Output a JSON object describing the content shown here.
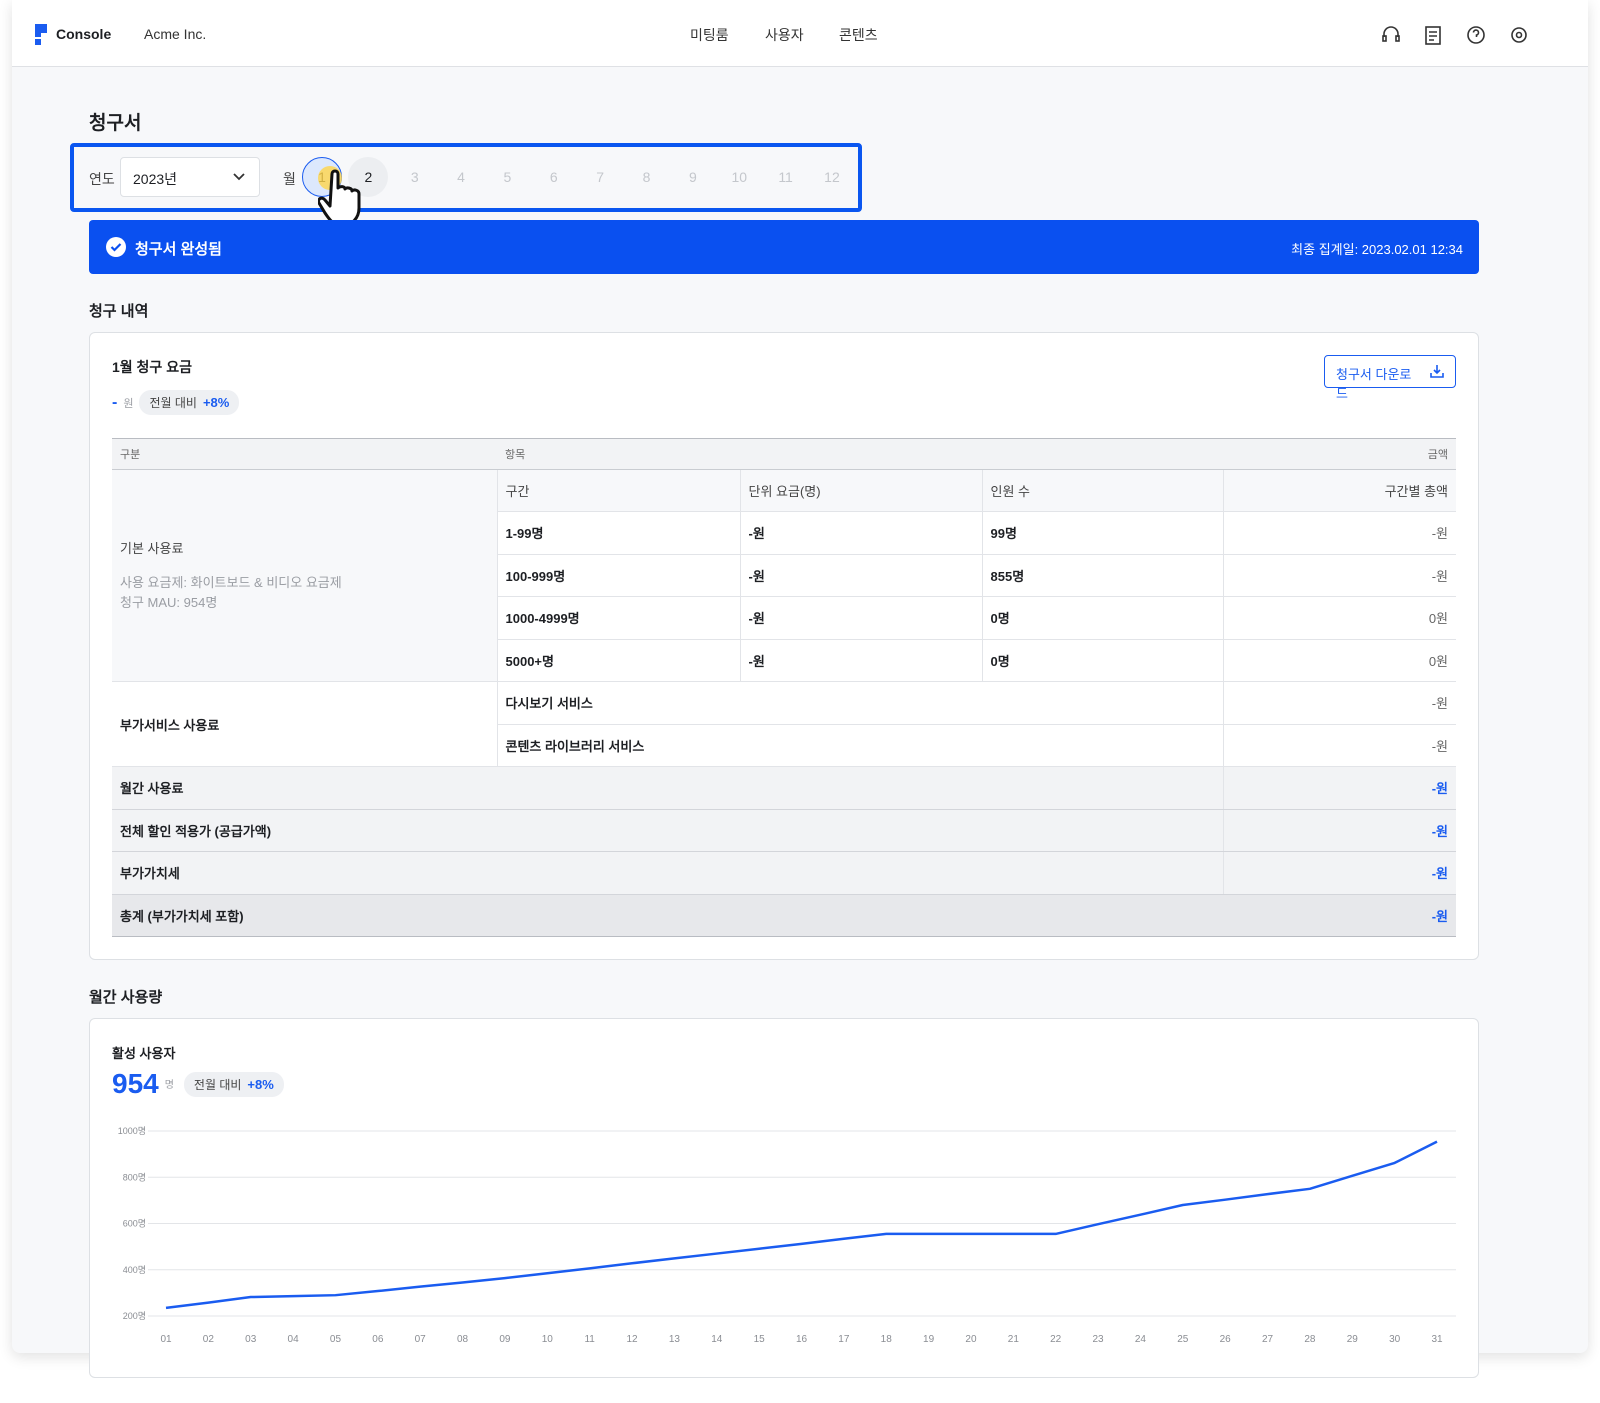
{
  "header": {
    "logo": "Console",
    "org": "Acme Inc.",
    "nav": [
      "미팅룸",
      "사용자",
      "콘텐츠"
    ]
  },
  "page_title": "청구서",
  "filter": {
    "year_label": "연도",
    "year": "2023년",
    "month_label": "월",
    "months": [
      "1",
      "2",
      "3",
      "4",
      "5",
      "6",
      "7",
      "8",
      "9",
      "10",
      "11",
      "12"
    ]
  },
  "banner": {
    "status": "청구서 완성됨",
    "last_updated": "최종 집계일: 2023.02.01 12:34"
  },
  "billing": {
    "section_title": "청구 내역",
    "card_title": "1월 청구 요금",
    "amount": "-",
    "amount_unit": "원",
    "compare_label": "전월 대비",
    "compare_value": "+8%",
    "download": "청구서 다운로드",
    "table": {
      "headers": [
        "구분",
        "항목",
        "금액"
      ],
      "base": {
        "label": "기본 사용료",
        "details": [
          "사용 요금제: 화이트보드 & 비디오 요금제",
          "청구 MAU: 954명"
        ],
        "columns": [
          "구간",
          "단위 요금(명)",
          "인원 수",
          "구간별 총액"
        ],
        "rows": [
          [
            "1-99명",
            "-원",
            "99명",
            "-원"
          ],
          [
            "100-999명",
            "-원",
            "855명",
            "-원"
          ],
          [
            "1000-4999명",
            "-원",
            "0명",
            "0원"
          ],
          [
            "5000+명",
            "-원",
            "0명",
            "0원"
          ]
        ]
      },
      "addon": {
        "label": "부가서비스 사용료",
        "rows": [
          [
            "다시보기 서비스",
            "-원"
          ],
          [
            "콘텐츠 라이브러리 서비스",
            "-원"
          ]
        ]
      },
      "summary": [
        [
          "월간 사용료",
          "-원"
        ],
        [
          "전체 할인 적용가 (공급가액)",
          "-원"
        ],
        [
          "부가가치세",
          "-원"
        ],
        [
          "총계 (부가가치세 포함)",
          "-원"
        ]
      ]
    }
  },
  "usage": {
    "section_title": "월간 사용량",
    "card_title": "활성 사용자",
    "value": "954",
    "unit": "명",
    "compare_label": "전월 대비",
    "compare_value": "+8%",
    "chart_data": {
      "type": "line",
      "categories": [
        "01",
        "02",
        "03",
        "04",
        "05",
        "06",
        "07",
        "08",
        "09",
        "10",
        "11",
        "12",
        "13",
        "14",
        "15",
        "16",
        "17",
        "18",
        "19",
        "20",
        "21",
        "22",
        "23",
        "24",
        "25",
        "26",
        "27",
        "28",
        "29",
        "30",
        "31"
      ],
      "series": [
        {
          "name": "활성 사용자",
          "color": "#1a5cf0",
          "values": [
            235,
            258,
            282,
            286,
            290,
            308,
            327,
            345,
            364,
            385,
            406,
            428,
            449,
            470,
            491,
            512,
            534,
            555,
            555,
            555,
            555,
            555,
            597,
            638,
            680,
            703,
            727,
            750,
            806,
            862,
            954
          ]
        }
      ],
      "ylim": [
        200,
        1000
      ],
      "yticks": [
        {
          "value": 200,
          "label": "200명"
        },
        {
          "value": 400,
          "label": "400명"
        },
        {
          "value": 600,
          "label": "600명"
        },
        {
          "value": 800,
          "label": "800명"
        },
        {
          "value": 1000,
          "label": "1000명"
        }
      ],
      "grid": true
    }
  }
}
